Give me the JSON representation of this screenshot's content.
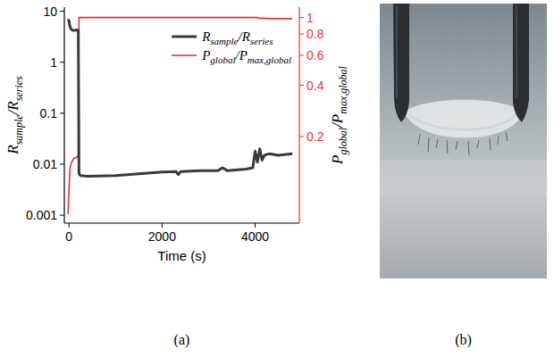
{
  "chart_data": {
    "type": "line",
    "x_label": "Time (s)",
    "y_label": "Rsample/Rseries",
    "y2_label": "Pglobal/Pmax,global",
    "x": [
      -20,
      0,
      20,
      50,
      80,
      120,
      160,
      200,
      215,
      250,
      400,
      1000,
      1500,
      2000,
      2300,
      2350,
      2400,
      2800,
      3200,
      3300,
      3400,
      3800,
      3950,
      4000,
      4050,
      4100,
      4150,
      4200,
      4300,
      4500,
      4800
    ],
    "series": [
      {
        "name": "Rsample/Rseries",
        "color": "#3a3a3a",
        "values": [
          7,
          6.5,
          5,
          4.4,
          4.2,
          4.2,
          4.3,
          4.2,
          0.0065,
          0.006,
          0.0058,
          0.006,
          0.0065,
          0.007,
          0.0072,
          0.0063,
          0.0072,
          0.0075,
          0.0075,
          0.0085,
          0.0075,
          0.008,
          0.0085,
          0.018,
          0.011,
          0.02,
          0.012,
          0.015,
          0.016,
          0.015,
          0.016
        ]
      },
      {
        "name": "Pglobal/Pmax,global",
        "color": "#e8312f",
        "axis": "y2",
        "values": [
          0.07,
          0.1,
          0.13,
          0.14,
          0.145,
          0.15,
          0.15,
          0.155,
          1,
          1,
          1,
          1,
          1,
          1,
          1,
          1,
          1,
          1,
          1,
          1,
          1,
          1,
          1,
          1,
          1,
          0.99,
          0.99,
          0.99,
          0.985,
          0.985,
          0.985
        ]
      }
    ],
    "xlim": [
      -100,
      4950
    ],
    "xticks": [
      0,
      2000,
      4000
    ],
    "ylim": [
      0.0007,
      12
    ],
    "yticks": [
      0.001,
      0.01,
      0.1,
      1,
      10
    ],
    "y2lim": [
      0.062,
      1.15
    ],
    "y2ticks": [
      0.2,
      0.4,
      0.6,
      0.8,
      1
    ],
    "log": "y",
    "legend": "upper right"
  },
  "panel_labels": [
    "(a)",
    "(b)"
  ]
}
